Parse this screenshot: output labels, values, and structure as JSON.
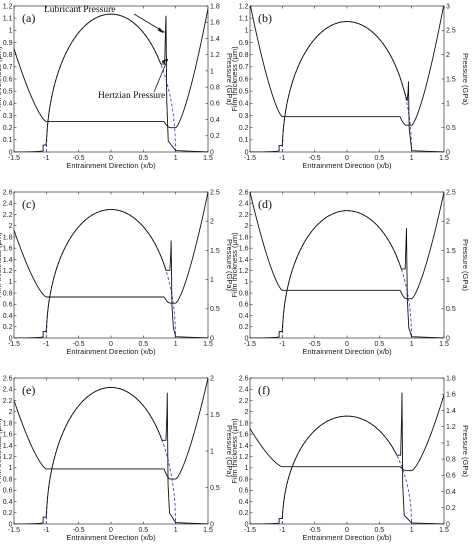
{
  "chart_data": [
    {
      "type": "line",
      "panel_label": "(a)",
      "xlabel": "Entrainment Direction (x/b)",
      "ylabel_left": "Film thickness (μm)",
      "ylabel_right": "Pressure (GPa)",
      "xlim": [
        -1.5,
        1.5
      ],
      "ylim_left": [
        0,
        1.2
      ],
      "ylim_right": [
        0,
        1.8
      ],
      "x_ticks": [
        "-1.5",
        "-1",
        "-0.5",
        "0",
        "0.5",
        "1",
        "1.5"
      ],
      "y_ticks_left": [
        "0",
        "0.1",
        "0.2",
        "0.3",
        "0.4",
        "0.5",
        "0.6",
        "0.7",
        "0.8",
        "0.9",
        "1",
        "1.1",
        "1.2"
      ],
      "y_ticks_right": [
        "0",
        "0.2",
        "0.4",
        "0.6",
        "0.8",
        "1",
        "1.2",
        "1.4",
        "1.6",
        "1.8"
      ],
      "annotations": [
        "Lubricant Pressure",
        "Hertzian Pressure"
      ],
      "film": {
        "h_central": 0.25,
        "h_min": 0.2,
        "h_edge_left": 0.85,
        "h_edge_right": 1.18
      },
      "hertzian": {
        "p_max": 1.7
      },
      "lubricant": {
        "spike_x": 0.85,
        "spike_p": 1.68,
        "shoulder_p": 1.43
      }
    },
    {
      "type": "line",
      "panel_label": "(b)",
      "xlabel": "Entrainment Direction (x/b)",
      "ylabel_left": "Film thickness (μm)",
      "ylabel_right": "Pressure (GPa)",
      "xlim": [
        -1.5,
        1.5
      ],
      "ylim_left": [
        0,
        1.2
      ],
      "ylim_right": [
        0,
        3
      ],
      "x_ticks": [
        "-1.5",
        "-1",
        "-0.5",
        "0",
        "0.5",
        "1",
        "1.5"
      ],
      "y_ticks_left": [
        "0",
        "0.1",
        "0.2",
        "0.3",
        "0.4",
        "0.5",
        "0.6",
        "0.7",
        "0.8",
        "0.9",
        "1",
        "1.1",
        "1.2"
      ],
      "y_ticks_right": [
        "0",
        "0.5",
        "1",
        "1.5",
        "2",
        "2.5",
        "3"
      ],
      "film": {
        "h_central": 0.29,
        "h_min": 0.22,
        "h_edge_left": 1.22,
        "h_edge_right": 1.22
      },
      "hertzian": {
        "p_max": 2.68
      },
      "lubricant": {
        "spike_x": 0.95,
        "spike_p": 1.45,
        "shoulder_p": 1.05
      }
    },
    {
      "type": "line",
      "panel_label": "(c)",
      "xlabel": "Entrainment Direction (x/b)",
      "ylabel_left": "Film thickness (μm)",
      "ylabel_right": "Pressure (GPa)",
      "xlim": [
        -1.5,
        1.5
      ],
      "ylim_left": [
        0,
        2.6
      ],
      "ylim_right": [
        0,
        2.5
      ],
      "x_ticks": [
        "-1.5",
        "-1",
        "-0.5",
        "0",
        "0.5",
        "1",
        "1.5"
      ],
      "y_ticks_left": [
        "0",
        "0.2",
        "0.4",
        "0.6",
        "0.8",
        "1",
        "1.2",
        "1.4",
        "1.6",
        "1.8",
        "2",
        "2.2",
        "2.4",
        "2.6"
      ],
      "y_ticks_right": [
        "0",
        "0.5",
        "1",
        "1.5",
        "2",
        "2.5"
      ],
      "film": {
        "h_central": 0.73,
        "h_min": 0.62,
        "h_edge_left": 1.92,
        "h_edge_right": 2.6
      },
      "hertzian": {
        "p_max": 2.2
      },
      "lubricant": {
        "spike_x": 0.93,
        "spike_p": 1.67,
        "shoulder_p": 1.25
      }
    },
    {
      "type": "line",
      "panel_label": "(d)",
      "xlabel": "Entrainment Direction (x/b)",
      "ylabel_left": "Film thickness (μm)",
      "ylabel_right": "Pressure (GPa)",
      "xlim": [
        -1.5,
        1.5
      ],
      "ylim_left": [
        0,
        2.6
      ],
      "ylim_right": [
        0,
        2.5
      ],
      "x_ticks": [
        "-1.5",
        "-1",
        "-0.5",
        "0",
        "0.5",
        "1",
        "1.5"
      ],
      "y_ticks_left": [
        "0",
        "0.2",
        "0.4",
        "0.6",
        "0.8",
        "1",
        "1.2",
        "1.4",
        "1.6",
        "1.8",
        "2",
        "2.2",
        "2.4",
        "2.6"
      ],
      "y_ticks_right": [
        "0",
        "0.5",
        "1",
        "1.5",
        "2",
        "2.5"
      ],
      "film": {
        "h_central": 0.85,
        "h_min": 0.7,
        "h_edge_left": 2.6,
        "h_edge_right": 2.6
      },
      "hertzian": {
        "p_max": 2.18
      },
      "lubricant": {
        "spike_x": 0.92,
        "spike_p": 1.88,
        "shoulder_p": 1.55
      }
    },
    {
      "type": "line",
      "panel_label": "(e)",
      "xlabel": "Entrainment Direction (x/b)",
      "ylabel_left": "Film thickness (μm)",
      "ylabel_right": "Pressure (GPa)",
      "xlim": [
        -1.5,
        1.5
      ],
      "ylim_left": [
        0,
        2.6
      ],
      "ylim_right": [
        0,
        2
      ],
      "x_ticks": [
        "-1.5",
        "-1",
        "-0.5",
        "0",
        "0.5",
        "1",
        "1.5"
      ],
      "y_ticks_left": [
        "0",
        "0.2",
        "0.4",
        "0.6",
        "0.8",
        "1",
        "1.2",
        "1.4",
        "1.6",
        "1.8",
        "2",
        "2.2",
        "2.4",
        "2.6"
      ],
      "y_ticks_right": [
        "0",
        "0.5",
        "1",
        "1.5",
        "2"
      ],
      "film": {
        "h_central": 0.98,
        "h_min": 0.8,
        "h_edge_left": 2.2,
        "h_edge_right": 2.6
      },
      "hertzian": {
        "p_max": 1.87
      },
      "lubricant": {
        "spike_x": 0.87,
        "spike_p": 1.8,
        "shoulder_p": 1.22
      }
    },
    {
      "type": "line",
      "panel_label": "(f)",
      "xlabel": "Entrainment Direction (x/b)",
      "ylabel_left": "Film thickness (μm)",
      "ylabel_right": "Pressure (GPa)",
      "xlim": [
        -1.5,
        1.5
      ],
      "ylim_left": [
        0,
        2.6
      ],
      "ylim_right": [
        0,
        1.8
      ],
      "x_ticks": [
        "-1.5",
        "-1",
        "-0.5",
        "0",
        "0.5",
        "1",
        "1.5"
      ],
      "y_ticks_left": [
        "0",
        "0.2",
        "0.4",
        "0.6",
        "0.8",
        "1",
        "1.2",
        "1.4",
        "1.6",
        "1.8",
        "2",
        "2.2",
        "2.4",
        "2.6"
      ],
      "y_ticks_right": [
        "0",
        "0.2",
        "0.4",
        "0.6",
        "0.8",
        "1",
        "1.2",
        "1.4",
        "1.6",
        "1.8"
      ],
      "film": {
        "h_central": 1.02,
        "h_min": 0.95,
        "h_edge_left": 1.7,
        "h_edge_right": 2.3
      },
      "hertzian": {
        "p_max": 1.33
      },
      "lubricant": {
        "spike_x": 0.85,
        "spike_p": 1.62,
        "shoulder_p": 1.05
      }
    }
  ]
}
